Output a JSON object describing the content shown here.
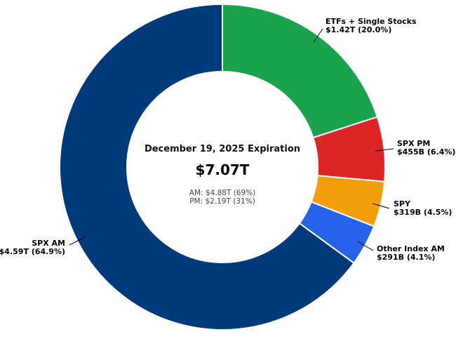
{
  "chart_data": {
    "type": "pie",
    "donut": true,
    "center": {
      "title": "December 19, 2025 Expiration",
      "total": "$7.07T",
      "line1": "AM: $4.88T  (69%)",
      "line2": "PM: $2.19T  (31%)"
    },
    "slices": [
      {
        "name": "ETFs + Single Stocks",
        "value_label": "$1.42T (20.0%)",
        "value": 1.42,
        "percent": 20.0,
        "color": "#1aa34a"
      },
      {
        "name": "SPX PM",
        "value_label": "$455B (6.4%)",
        "value": 0.455,
        "percent": 6.4,
        "color": "#dc2626"
      },
      {
        "name": "SPY",
        "value_label": "$319B (4.5%)",
        "value": 0.319,
        "percent": 4.5,
        "color": "#f59e0b"
      },
      {
        "name": "Other Index AM",
        "value_label": "$291B (4.1%)",
        "value": 0.291,
        "percent": 4.1,
        "color": "#2563eb"
      },
      {
        "name": "SPX AM",
        "value_label": "$4.59T (64.9%)",
        "value": 4.59,
        "percent": 64.9,
        "color": "#003a7a"
      }
    ]
  }
}
